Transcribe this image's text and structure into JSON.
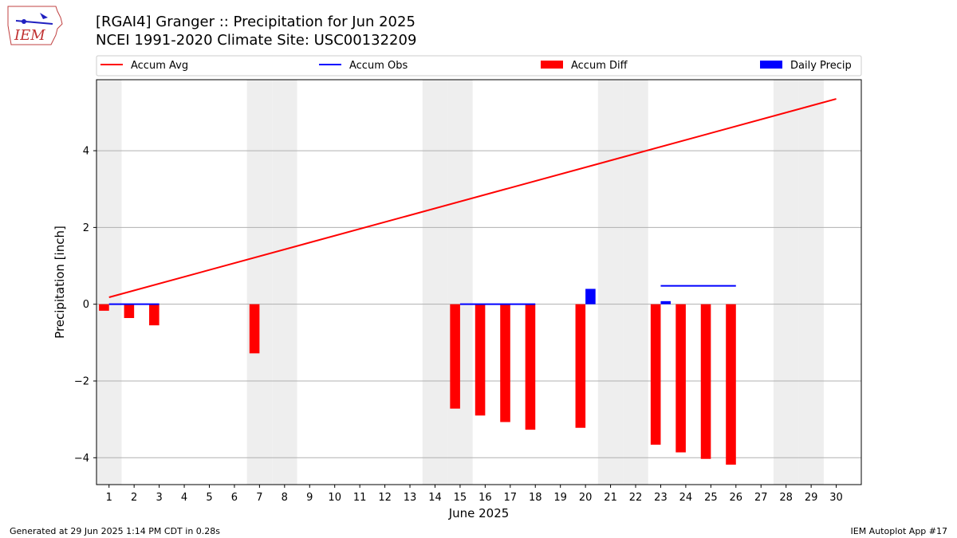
{
  "header": {
    "logo_text": "IEM",
    "title_line1": "[RGAI4] Granger :: Precipitation for Jun 2025",
    "title_line2": "NCEI 1991-2020 Climate Site: USC00132209"
  },
  "footer": {
    "generated": "Generated at 29 Jun 2025 1:14 PM CDT in 0.28s",
    "app": "IEM Autoplot App #17"
  },
  "colors": {
    "accum_avg": "#ff0000",
    "accum_obs": "#0000ff",
    "accum_diff": "#ff0000",
    "daily_precip": "#0000ff",
    "weekend_shade": "#eeeeee",
    "grid": "#b0b0b0"
  },
  "chart_data": {
    "type": "bar",
    "xlabel": "June 2025",
    "ylabel": "Precipitation [inch]",
    "xlim": [
      0.5,
      31.0
    ],
    "ylim": [
      -4.7,
      5.85
    ],
    "yticks": [
      -4,
      -2,
      0,
      2,
      4
    ],
    "ytick_labels": [
      "−4",
      "−2",
      "0",
      "2",
      "4"
    ],
    "xticks": [
      1,
      2,
      3,
      4,
      5,
      6,
      7,
      8,
      9,
      10,
      11,
      12,
      13,
      14,
      15,
      16,
      17,
      18,
      19,
      20,
      21,
      22,
      23,
      24,
      25,
      26,
      27,
      28,
      29,
      30
    ],
    "grid": "horizontal",
    "legend_position": "top",
    "weekend_days": [
      1,
      7,
      8,
      14,
      15,
      21,
      22,
      28,
      29
    ],
    "legend": [
      {
        "label": "Accum Avg",
        "kind": "line",
        "series": "accum_avg"
      },
      {
        "label": "Accum Obs",
        "kind": "line",
        "series": "accum_obs"
      },
      {
        "label": "Accum Diff",
        "kind": "bar",
        "series": "accum_diff"
      },
      {
        "label": "Daily Precip",
        "kind": "bar",
        "series": "daily_precip"
      }
    ],
    "accum_avg": {
      "days": [
        1,
        30
      ],
      "values": [
        0.18,
        5.35
      ]
    },
    "accum_obs": [
      {
        "days": [
          1,
          3
        ],
        "value": 0.0
      },
      {
        "days": [
          15,
          18
        ],
        "value": 0.0
      },
      {
        "days": [
          23,
          26
        ],
        "value": 0.48
      }
    ],
    "accum_diff": {
      "days": [
        1,
        2,
        3,
        7,
        15,
        16,
        17,
        18,
        20,
        23,
        24,
        25,
        26
      ],
      "values": [
        -0.17,
        -0.36,
        -0.55,
        -1.28,
        -2.72,
        -2.9,
        -3.07,
        -3.27,
        -3.22,
        -3.66,
        -3.86,
        -4.03,
        -4.18
      ]
    },
    "daily_precip": {
      "days": [
        20,
        23
      ],
      "values": [
        0.4,
        0.08
      ]
    }
  }
}
